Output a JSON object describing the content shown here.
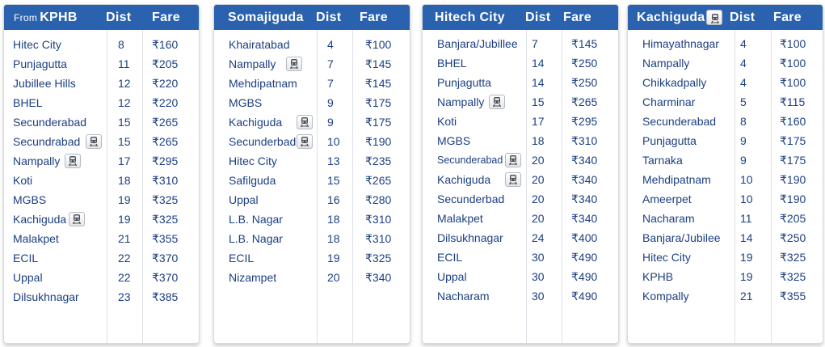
{
  "colors": {
    "header_bg": "#2a62b0",
    "header_text": "#ffffff",
    "row_text": "#1c3f82"
  },
  "icons": {
    "train": "train-icon"
  },
  "cards": [
    {
      "from_label": "From",
      "title": "KPHB",
      "dist_label": "Dist",
      "fare_label": "Fare",
      "header_train_icon": false,
      "rows": [
        {
          "place": "Hitec City",
          "dist": "8",
          "fare": "₹160",
          "train": false
        },
        {
          "place": "Punjagutta",
          "dist": "11",
          "fare": "₹205",
          "train": false
        },
        {
          "place": "Jubillee Hills",
          "dist": "12",
          "fare": "₹220",
          "train": false
        },
        {
          "place": "BHEL",
          "dist": "12",
          "fare": "₹220",
          "train": false
        },
        {
          "place": "Secunderabad",
          "dist": "15",
          "fare": "₹265",
          "train": false
        },
        {
          "place": "Secundrabad",
          "dist": "15",
          "fare": "₹265",
          "train": true
        },
        {
          "place": "Nampally",
          "dist": "17",
          "fare": "₹295",
          "train": true
        },
        {
          "place": "Koti",
          "dist": "18",
          "fare": "₹310",
          "train": false
        },
        {
          "place": "MGBS",
          "dist": "19",
          "fare": "₹325",
          "train": false
        },
        {
          "place": "Kachiguda",
          "dist": "19",
          "fare": "₹325",
          "train": true
        },
        {
          "place": "Malakpet",
          "dist": "21",
          "fare": "₹355",
          "train": false
        },
        {
          "place": "ECIL",
          "dist": "22",
          "fare": "₹370",
          "train": false
        },
        {
          "place": "Uppal",
          "dist": "22",
          "fare": "₹370",
          "train": false
        },
        {
          "place": "Dilsukhnagar",
          "dist": "23",
          "fare": "₹385",
          "train": false
        }
      ]
    },
    {
      "from_label": "",
      "title": "Somajiguda",
      "dist_label": "Dist",
      "fare_label": "Fare",
      "header_train_icon": false,
      "rows": [
        {
          "place": "Khairatabad",
          "dist": "4",
          "fare": "₹100",
          "train": false
        },
        {
          "place": "Nampally",
          "dist": "7",
          "fare": "₹145",
          "train": true
        },
        {
          "place": "Mehdipatnam",
          "dist": "7",
          "fare": "₹145",
          "train": false
        },
        {
          "place": "MGBS",
          "dist": "9",
          "fare": "₹175",
          "train": false
        },
        {
          "place": "Kachiguda",
          "dist": "9",
          "fare": "₹175",
          "train": true
        },
        {
          "place": "Secunderbad",
          "dist": "10",
          "fare": "₹190",
          "train": true
        },
        {
          "place": "Hitec City",
          "dist": "13",
          "fare": "₹235",
          "train": false
        },
        {
          "place": "Safilguda",
          "dist": "15",
          "fare": "₹265",
          "train": false
        },
        {
          "place": "Uppal",
          "dist": "16",
          "fare": "₹280",
          "train": false
        },
        {
          "place": "L.B. Nagar",
          "dist": "18",
          "fare": "₹310",
          "train": false
        },
        {
          "place": "L.B. Nagar",
          "dist": "18",
          "fare": "₹310",
          "train": false
        },
        {
          "place": "ECIL",
          "dist": "19",
          "fare": "₹325",
          "train": false
        },
        {
          "place": "Nizampet",
          "dist": "20",
          "fare": "₹340",
          "train": false
        }
      ]
    },
    {
      "from_label": "",
      "title": "Hitech City",
      "dist_label": "Dist",
      "fare_label": "Fare",
      "header_train_icon": false,
      "rows": [
        {
          "place": "Banjara/Jubillee",
          "dist": "7",
          "fare": "₹145",
          "train": false
        },
        {
          "place": "BHEL",
          "dist": "14",
          "fare": "₹250",
          "train": false
        },
        {
          "place": "Punjagutta",
          "dist": "14",
          "fare": "₹250",
          "train": false
        },
        {
          "place": "Nampally",
          "dist": "15",
          "fare": "₹265",
          "train": true
        },
        {
          "place": "Koti",
          "dist": "17",
          "fare": "₹295",
          "train": false
        },
        {
          "place": "MGBS",
          "dist": "18",
          "fare": "₹310",
          "train": false
        },
        {
          "place": "Secunderabad",
          "dist": "20",
          "fare": "₹340",
          "train": true,
          "small": true
        },
        {
          "place": "Kachiguda",
          "dist": "20",
          "fare": "₹340",
          "train": true
        },
        {
          "place": "Secunderbad",
          "dist": "20",
          "fare": "₹340",
          "train": false
        },
        {
          "place": "Malakpet",
          "dist": "20",
          "fare": "₹340",
          "train": false
        },
        {
          "place": "Dilsukhnagar",
          "dist": "24",
          "fare": "₹400",
          "train": false
        },
        {
          "place": "ECIL",
          "dist": "30",
          "fare": "₹490",
          "train": false
        },
        {
          "place": "Uppal",
          "dist": "30",
          "fare": "₹490",
          "train": false
        },
        {
          "place": "Nacharam",
          "dist": "30",
          "fare": "₹490",
          "train": false
        }
      ]
    },
    {
      "from_label": "",
      "title": "Kachiguda",
      "dist_label": "Dist",
      "fare_label": "Fare",
      "header_train_icon": true,
      "rows": [
        {
          "place": "Himayathnagar",
          "dist": "4",
          "fare": "₹100",
          "train": false
        },
        {
          "place": "Nampally",
          "dist": "4",
          "fare": "₹100",
          "train": false
        },
        {
          "place": "Chikkadpally",
          "dist": "4",
          "fare": "₹100",
          "train": false
        },
        {
          "place": "Charminar",
          "dist": "5",
          "fare": "₹115",
          "train": false
        },
        {
          "place": "Secunderabad",
          "dist": "8",
          "fare": "₹160",
          "train": false
        },
        {
          "place": "Punjagutta",
          "dist": "9",
          "fare": "₹175",
          "train": false
        },
        {
          "place": "Tarnaka",
          "dist": "9",
          "fare": "₹175",
          "train": false
        },
        {
          "place": "Mehdipatnam",
          "dist": "10",
          "fare": "₹190",
          "train": false
        },
        {
          "place": "Ameerpet",
          "dist": "10",
          "fare": "₹190",
          "train": false
        },
        {
          "place": "Nacharam",
          "dist": "11",
          "fare": "₹205",
          "train": false
        },
        {
          "place": "Banjara/Jubilee",
          "dist": "14",
          "fare": "₹250",
          "train": false
        },
        {
          "place": "Hitec City",
          "dist": "19",
          "fare": "₹325",
          "train": false
        },
        {
          "place": "KPHB",
          "dist": "19",
          "fare": "₹325",
          "train": false
        },
        {
          "place": "Kompally",
          "dist": "21",
          "fare": "₹355",
          "train": false
        }
      ]
    }
  ]
}
